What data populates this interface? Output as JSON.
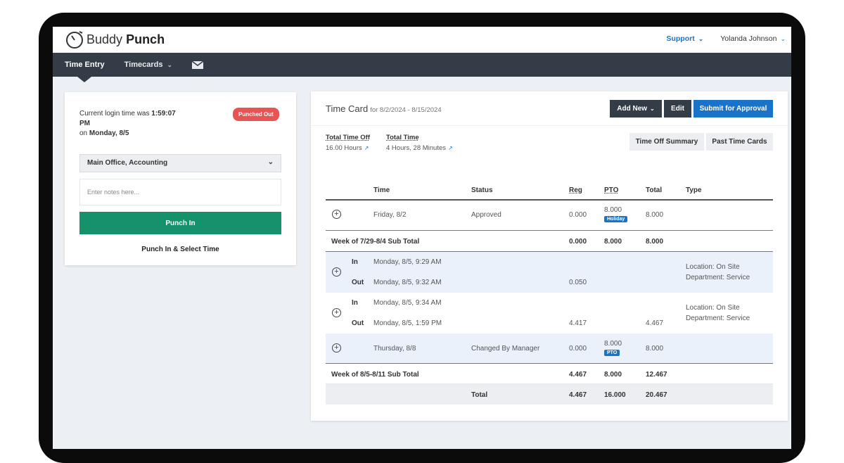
{
  "brand": {
    "light": "Buddy",
    "bold": "Punch"
  },
  "topbar": {
    "support": "Support",
    "user": "Yolanda Johnson"
  },
  "nav": {
    "time_entry": "Time Entry",
    "timecards": "Timecards"
  },
  "punch_panel": {
    "login_prefix": "Current login time was ",
    "login_time": "1:59:07 PM",
    "login_on": "on ",
    "login_date": "Monday, 8/5",
    "status_badge": "Punched Out",
    "location_select": "Main Office, Accounting",
    "notes_placeholder": "Enter notes here...",
    "punch_in_button": "Punch In",
    "punch_select_link": "Punch In & Select Time"
  },
  "timecard": {
    "title": "Time Card",
    "range": "for 8/2/2024 - 8/15/2024",
    "add_new": "Add New",
    "edit": "Edit",
    "submit": "Submit for Approval",
    "total_time_off_label": "Total Time Off",
    "total_time_off_value": "16.00 Hours",
    "total_time_label": "Total Time",
    "total_time_value": "4 Hours, 28 Minutes",
    "time_off_summary": "Time Off Summary",
    "past_time_cards": "Past Time Cards"
  },
  "table": {
    "headers": {
      "time": "Time",
      "status": "Status",
      "reg": "Reg",
      "pto": "PTO",
      "total": "Total",
      "type": "Type"
    },
    "row1": {
      "time": "Friday, 8/2",
      "status": "Approved",
      "reg": "0.000",
      "pto": "8.000",
      "pto_tag": "Holiday",
      "total": "8.000"
    },
    "sub1": {
      "label": "Week of 7/29-8/4 Sub Total",
      "reg": "0.000",
      "pto": "8.000",
      "total": "8.000"
    },
    "row2": {
      "in_label": "In",
      "in_time": "Monday, 8/5, 9:29 AM",
      "out_label": "Out",
      "out_time": "Monday, 8/5, 9:32 AM",
      "reg": "0.050",
      "type1": "Location: On Site",
      "type2": "Department: Service"
    },
    "row3": {
      "in_label": "In",
      "in_time": "Monday, 8/5, 9:34 AM",
      "out_label": "Out",
      "out_time": "Monday, 8/5, 1:59 PM",
      "reg": "4.417",
      "total": "4.467",
      "type1": "Location: On Site",
      "type2": "Department: Service"
    },
    "row4": {
      "time": "Thursday, 8/8",
      "status": "Changed By Manager",
      "reg": "0.000",
      "pto": "8.000",
      "pto_tag": "PTO",
      "total": "8.000"
    },
    "sub2": {
      "label": "Week of 8/5-8/11 Sub Total",
      "reg": "4.467",
      "pto": "8.000",
      "total": "12.467"
    },
    "grand": {
      "label": "Total",
      "reg": "4.467",
      "pto": "16.000",
      "total": "20.467"
    }
  },
  "colors": {
    "accent": "#1a73c8",
    "green": "#15926b",
    "nav": "#343c48",
    "danger": "#e85454"
  }
}
